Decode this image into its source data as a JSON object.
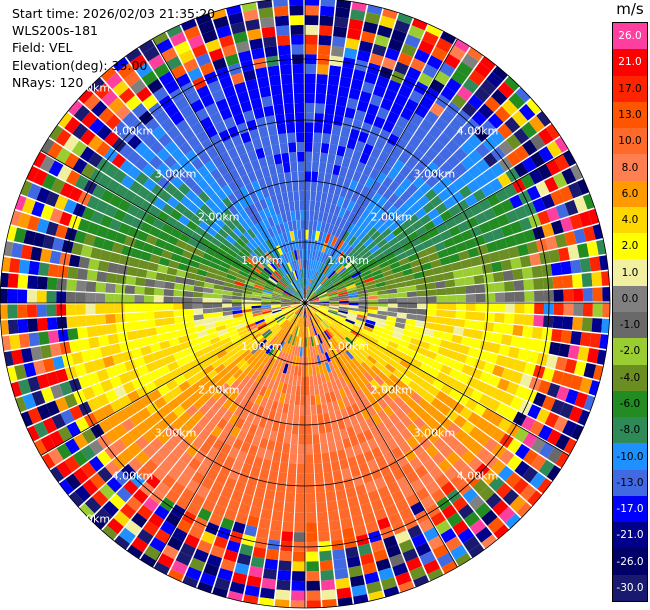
{
  "info": {
    "start_time": "Start time: 2026/02/03 21:35:20",
    "instrument": "WLS200s-181",
    "field": "Field: VEL",
    "elevation": "Elevation(deg): 35.00",
    "nrays": "NRays: 120"
  },
  "colorbar": {
    "unit": "m/s",
    "levels": [
      {
        "label": "26.0",
        "color": "#ff3fa0"
      },
      {
        "label": "21.0",
        "color": "#ff0000"
      },
      {
        "label": "17.0",
        "color": "#ff2400"
      },
      {
        "label": "13.0",
        "color": "#ff5500"
      },
      {
        "label": "10.0",
        "color": "#ff6a2a"
      },
      {
        "label": "8.0",
        "color": "#ff7f50"
      },
      {
        "label": "6.0",
        "color": "#ff9a00"
      },
      {
        "label": "4.0",
        "color": "#ffd700"
      },
      {
        "label": "2.0",
        "color": "#ffff00"
      },
      {
        "label": "1.0",
        "color": "#f0f0a0"
      },
      {
        "label": "0.0",
        "color": "#808080"
      },
      {
        "label": "-1.0",
        "color": "#696969"
      },
      {
        "label": "-2.0",
        "color": "#9acd32"
      },
      {
        "label": "-4.0",
        "color": "#6b8e23"
      },
      {
        "label": "-6.0",
        "color": "#228b22"
      },
      {
        "label": "-8.0",
        "color": "#2e8b57"
      },
      {
        "label": "-10.0",
        "color": "#1e90ff"
      },
      {
        "label": "-13.0",
        "color": "#4169e1"
      },
      {
        "label": "-17.0",
        "color": "#0000ff"
      },
      {
        "label": "-21.0",
        "color": "#00008b"
      },
      {
        "label": "-26.0",
        "color": "#000066"
      },
      {
        "label": "-30.0",
        "color": "#191970"
      }
    ]
  },
  "chart_data": {
    "type": "heatmap",
    "projection": "polar (PPI)",
    "field": "VEL",
    "units": "m/s",
    "elevation_deg": 35.0,
    "n_rays": 120,
    "max_range_km": 5.0,
    "range_rings_km": [
      1.0,
      2.0,
      3.0,
      4.0,
      5.0
    ],
    "range_ring_labels": [
      "1.00km",
      "2.00km",
      "3.00km",
      "4.00km",
      "5.00km"
    ],
    "spoke_angles_deg": [
      0,
      30,
      60,
      90,
      120,
      150,
      180,
      210,
      240,
      270,
      300,
      330
    ],
    "value_range": [
      -30.0,
      26.0
    ],
    "pattern": {
      "north_sector": "receding negative velocities (-8 to -17 m/s, blue/green), strongest toward north-northwest",
      "south_sector": "positive velocities (8 to 13 m/s, salmon/red) with yellow (2-6 m/s) transition band around east and west",
      "near_origin": "near-zero/mixed values",
      "beyond_3.8km": "noisy mixed values across full color range"
    }
  }
}
